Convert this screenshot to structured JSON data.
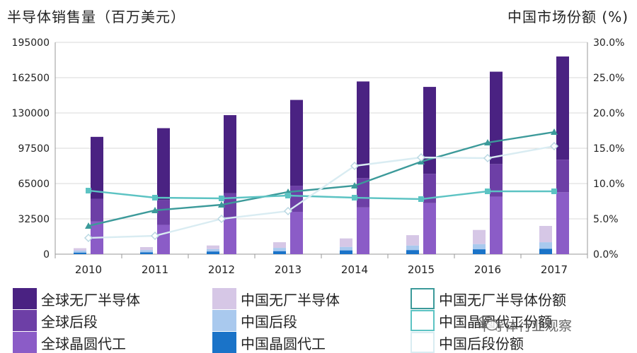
{
  "titles": {
    "left": "半导体销售量（百万美元）",
    "right": "中国市场份额 (%)"
  },
  "chart_data": {
    "type": "bar",
    "categories": [
      "2010",
      "2011",
      "2012",
      "2013",
      "2014",
      "2015",
      "2016",
      "2017"
    ],
    "ylim_left": [
      0,
      195000
    ],
    "yticks_left": [
      "0",
      "32500",
      "65000",
      "97500",
      "130000",
      "162500",
      "195000"
    ],
    "ylim_right": [
      0,
      30
    ],
    "yticks_right": [
      "0.0%",
      "5.0%",
      "10.0%",
      "15.0%",
      "20.0%",
      "25.0%",
      "30.0%"
    ],
    "grid": true,
    "global_stack": [
      {
        "name": "全球晶圆代工",
        "color": "#8b5cc7",
        "values": [
          30000,
          27000,
          34000,
          39000,
          43000,
          47000,
          53000,
          57000
        ]
      },
      {
        "name": "全球后段",
        "color": "#6d3fa6",
        "values": [
          21000,
          23000,
          22000,
          24000,
          27000,
          27000,
          30000,
          30000
        ]
      },
      {
        "name": "全球无厂半导体",
        "color": "#4a2282",
        "values": [
          57000,
          66000,
          72000,
          79000,
          89000,
          80000,
          85000,
          95000
        ]
      }
    ],
    "china_stack": [
      {
        "name": "中国晶圆代工",
        "color": "#1a73c8",
        "values": [
          1500,
          1800,
          2500,
          2800,
          3500,
          3800,
          4500,
          5000
        ]
      },
      {
        "name": "中国后段",
        "color": "#a9c9ee",
        "values": [
          1800,
          2000,
          2200,
          3000,
          3200,
          4200,
          4800,
          6000
        ]
      },
      {
        "name": "中国无厂半导体",
        "color": "#d6c7e6",
        "values": [
          2200,
          2700,
          3300,
          5200,
          7800,
          9500,
          13000,
          15000
        ]
      }
    ],
    "lines": [
      {
        "name": "中国无厂半导体份额",
        "color": "#3c9a9a",
        "marker": "triangle",
        "values": [
          4.0,
          6.2,
          7.0,
          8.8,
          9.7,
          13.1,
          15.8,
          17.3
        ]
      },
      {
        "name": "中国晶圆代工份额",
        "color": "#5cc3c3",
        "marker": "square",
        "values": [
          9.0,
          8.0,
          7.9,
          8.3,
          8.0,
          7.8,
          8.9,
          8.9
        ]
      },
      {
        "name": "中国后段份额",
        "color": "#d9ecf2",
        "marker": "diamond",
        "values": [
          2.3,
          2.6,
          5.0,
          6.1,
          12.5,
          13.7,
          13.6,
          15.3
        ]
      }
    ]
  },
  "legend": [
    {
      "label": "全球无厂半导体",
      "color": "#4a2282",
      "kind": "bar"
    },
    {
      "label": "中国无厂半导体",
      "color": "#d6c7e6",
      "kind": "bar"
    },
    {
      "label": "中国无厂半导体份额",
      "color": "#3c9a9a",
      "kind": "line"
    },
    {
      "label": "全球后段",
      "color": "#6d3fa6",
      "kind": "bar"
    },
    {
      "label": "中国后段",
      "color": "#a9c9ee",
      "kind": "bar"
    },
    {
      "label": "中国晶圆代工份额",
      "color": "#5cc3c3",
      "kind": "line"
    },
    {
      "label": "全球晶圆代工",
      "color": "#8b5cc7",
      "kind": "bar"
    },
    {
      "label": "中国晶圆代工",
      "color": "#1a73c8",
      "kind": "bar"
    },
    {
      "label": "中国后段份额",
      "color": "#d9ecf2",
      "kind": "line"
    }
  ],
  "watermark": "半导体行业观察"
}
